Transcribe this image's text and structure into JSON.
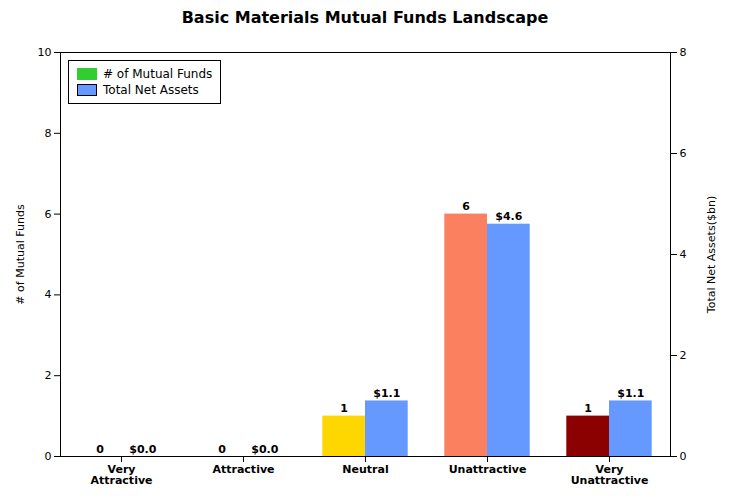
{
  "chart_data": {
    "type": "bar",
    "title": "Basic Materials Mutual Funds Landscape",
    "categories": [
      "Very\nAttractive",
      "Attractive",
      "Neutral",
      "Unattractive",
      "Very\nUnattractive"
    ],
    "series": [
      {
        "name": "# of Mutual Funds",
        "color": "#32CD32",
        "colors": [
          "#32CD32",
          "#32CD32",
          "#FFD700",
          "#FA8060",
          "#8B0000"
        ],
        "values": [
          0,
          0,
          1,
          6,
          1
        ]
      },
      {
        "name": "Total Net Assets",
        "color": "#6699FF",
        "values": [
          0.0,
          0.0,
          1.1,
          4.6,
          1.1
        ],
        "value_labels": [
          "$0.0",
          "$0.0",
          "$1.1",
          "$4.6",
          "$1.1"
        ],
        "axis": "y2"
      }
    ],
    "ylabel": "# of Mutual Funds",
    "y2label": "Total Net Assets($bn)",
    "ylim": [
      0,
      10
    ],
    "yticks": [
      0,
      2,
      4,
      6,
      8,
      10
    ],
    "y2lim": [
      0,
      8
    ],
    "y2ticks": [
      0,
      2,
      4,
      6,
      8
    ],
    "data_labels": true,
    "legend": "upper left",
    "grid": false
  }
}
